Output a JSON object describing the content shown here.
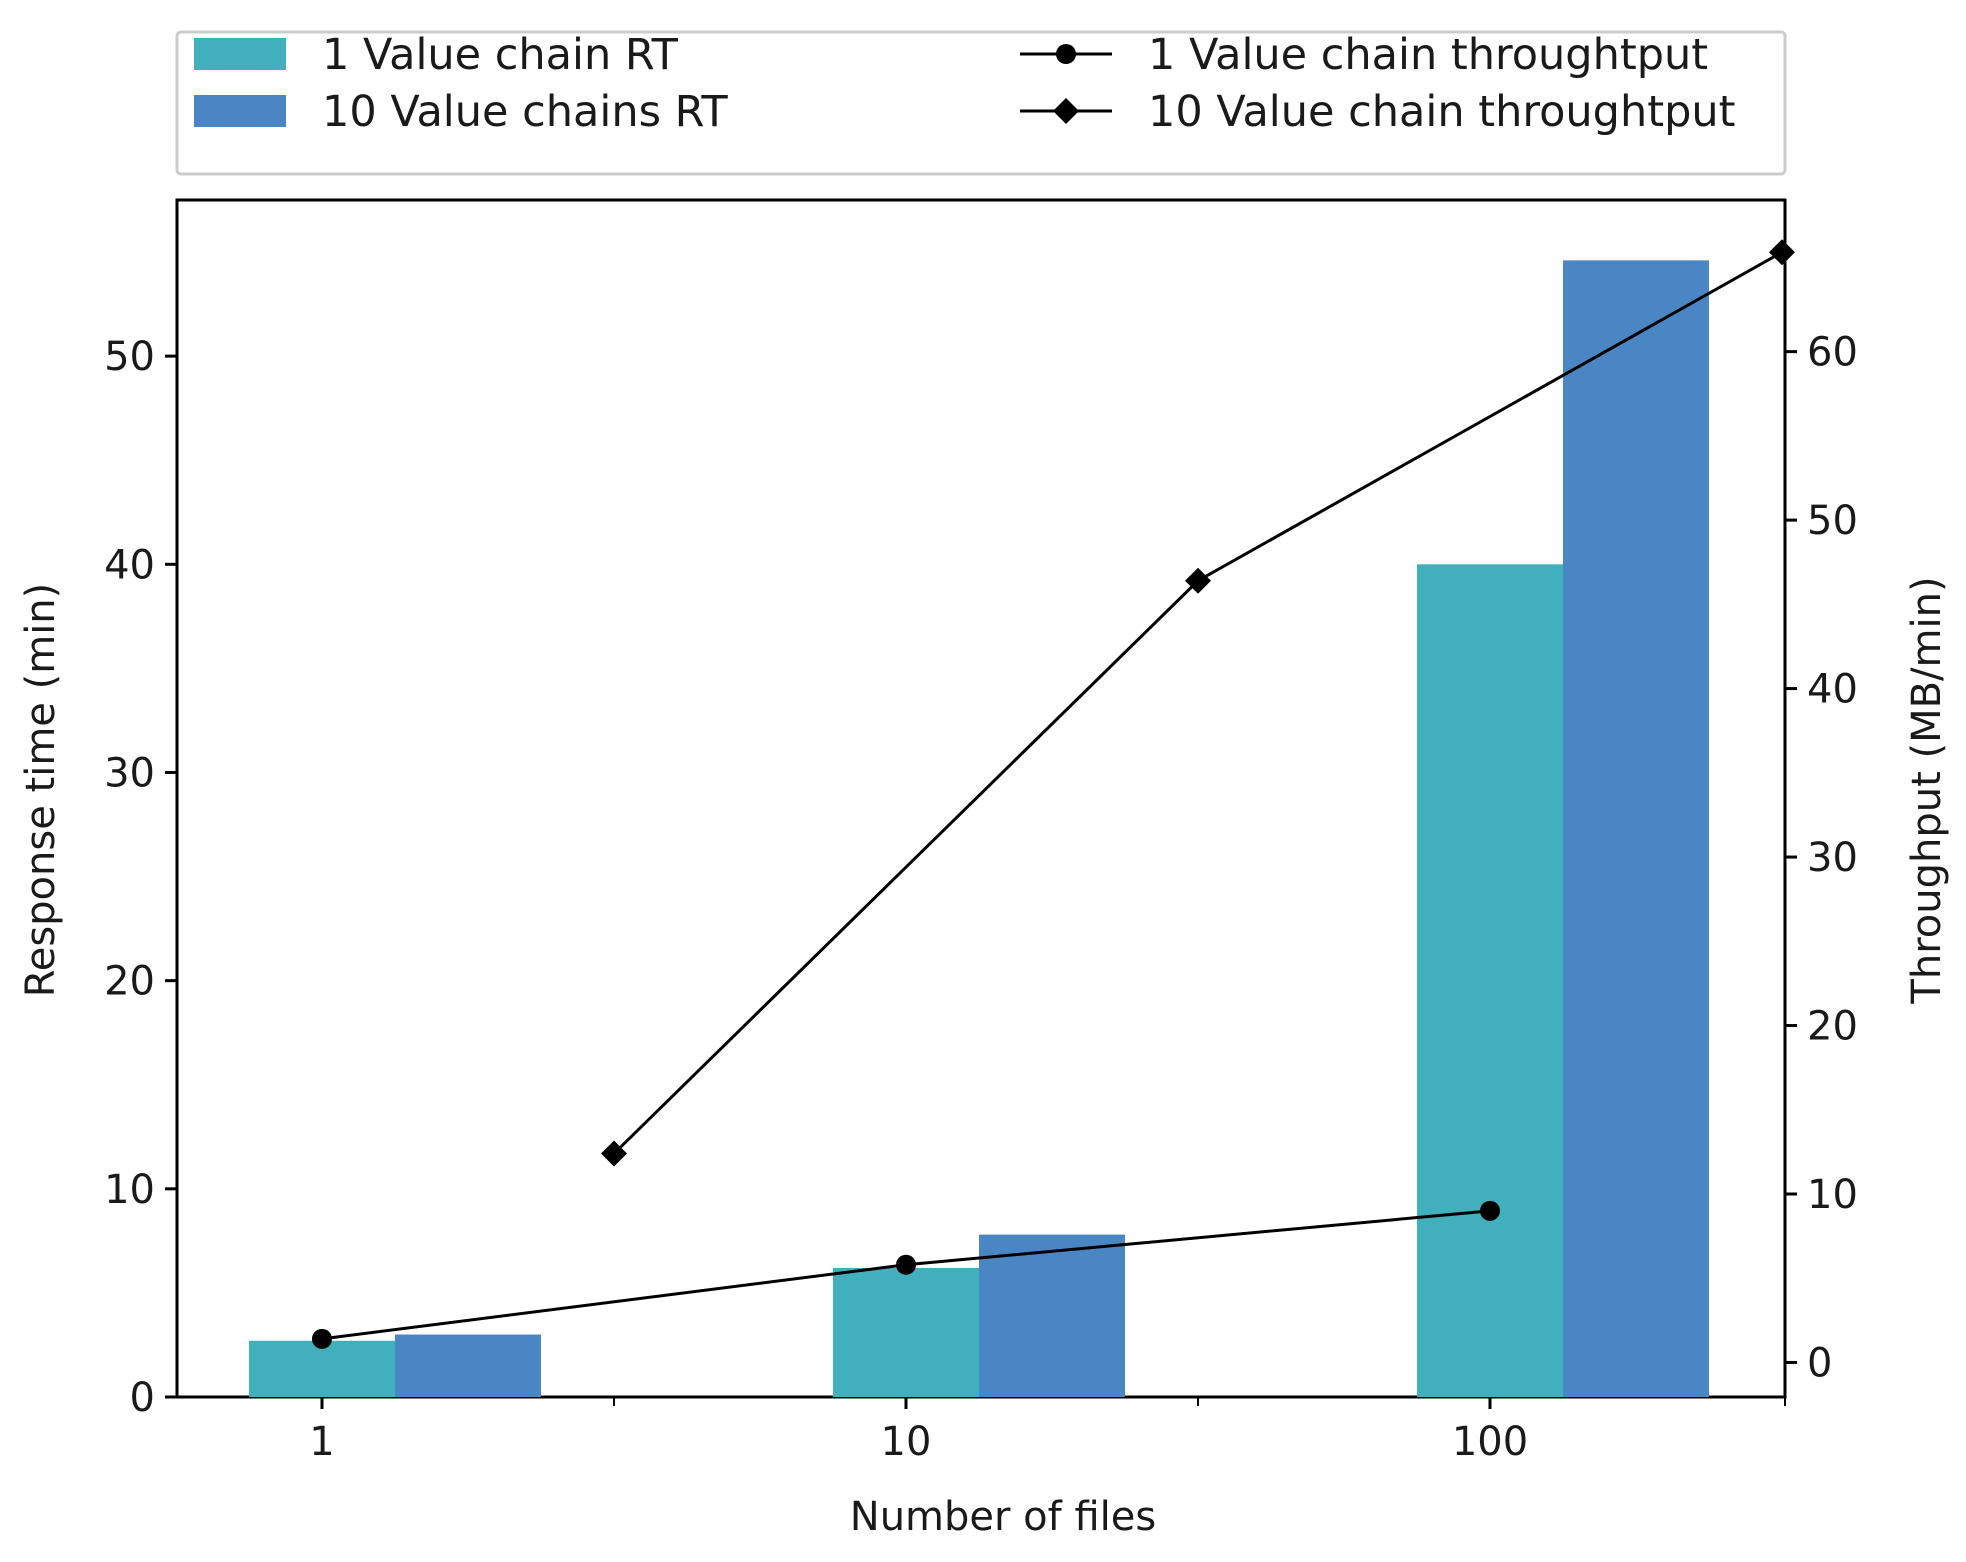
{
  "chart_data": {
    "type": "bar+line",
    "categories": [
      "1",
      "10",
      "100"
    ],
    "xlabel": "Number of files",
    "ylabel_left": "Response time (min)",
    "ylabel_right": "Throughput (MB/min)",
    "ylim_left": [
      0,
      57.5
    ],
    "ylim_right": [
      -2.05,
      69
    ],
    "yticks_left": [
      0,
      10,
      20,
      30,
      40,
      50
    ],
    "yticks_right": [
      0,
      10,
      20,
      30,
      40,
      50,
      60
    ],
    "legend_position": "top",
    "bar_series": [
      {
        "name": "1 Value chain RT",
        "color": "#42afbd",
        "values": [
          2.7,
          6.2,
          40
        ]
      },
      {
        "name": "10 Value chains RT",
        "color": "#4a86c3",
        "values": [
          3.0,
          7.8,
          54.6
        ]
      }
    ],
    "line_series": [
      {
        "name": "1 Value chain throughtput",
        "marker": "circle",
        "color": "#000000",
        "x_offset": 0,
        "values": [
          1.4,
          5.8,
          9.0
        ]
      },
      {
        "name": "10 Value chain throughtput",
        "marker": "diamond",
        "color": "#000000",
        "x_offset": 0.5,
        "values": [
          12.4,
          46.4,
          65.9
        ]
      }
    ]
  }
}
